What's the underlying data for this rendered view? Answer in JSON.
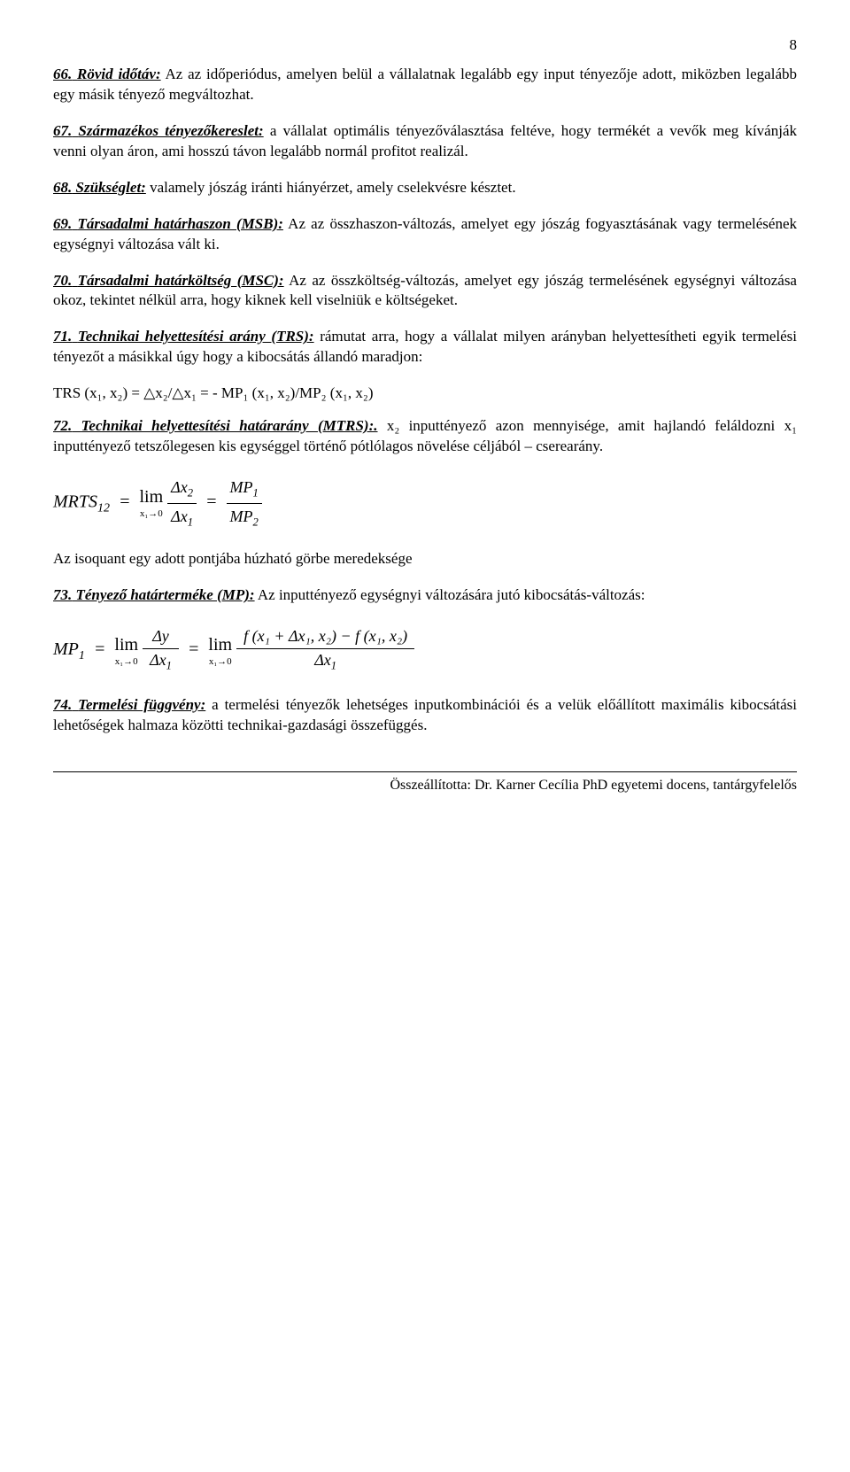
{
  "page_number": "8",
  "entries": [
    {
      "num": "66.",
      "term": "Rövid időtáv:",
      "body": " Az az időperiódus, amelyen belül a vállalatnak legalább egy input tényezője adott, miközben legalább egy másik tényező megváltozhat."
    },
    {
      "num": "67.",
      "term": "Származékos tényezőkereslet:",
      "body": " a vállalat optimális tényezőválasztása feltéve, hogy termékét a vevők meg kívánják venni olyan áron, ami hosszú távon legalább normál profitot realizál."
    },
    {
      "num": "68.",
      "term": "Szükséglet:",
      "body": "  valamely jószág iránti hiányérzet, amely cselekvésre késztet."
    },
    {
      "num": "69.",
      "term": "Társadalmi határhaszon (MSB):",
      "body": " Az az összhaszon-változás, amelyet egy jószág fogyasztásának vagy termelésének egységnyi változása vált ki."
    },
    {
      "num": "70.",
      "term": "Társadalmi határköltség (MSC):",
      "body": " Az az összköltség-változás, amelyet egy jószág termelésének egységnyi változása okoz, tekintet nélkül arra, hogy kiknek kell viselniük e költségeket."
    },
    {
      "num": "71.",
      "term": "Technikai helyettesítési arány (TRS):",
      "body": " rámutat arra, hogy a vállalat milyen arányban helyettesítheti egyik termelési tényezőt a másikkal úgy hogy a kibocsátás állandó maradjon:"
    },
    {
      "num": "72.",
      "term": "Technikai helyettesítési határarány (MTRS):.",
      "body": " x₂ inputtényező azon mennyisége, amit hajlandó feláldozni x₁ inputtényező tetszőlegesen kis egységgel történő pótlólagos növelése céljából – cserearány."
    },
    {
      "num": "73.",
      "term": "Tényező határterméke (MP):",
      "body": " Az inputtényező egységnyi változására jutó kibocsátás-változás:"
    },
    {
      "num": "74.",
      "term": "Termelési függvény:",
      "body": " a termelési  tényezők lehetséges inputkombinációi és a velük előállított maximális kibocsátási lehetőségek halmaza közötti technikai-gazdasági összefüggés."
    }
  ],
  "trs_formula": "TRS (x₁, x₂) = △x₂/△x₁ = - MP₁ (x₁, x₂)/MP₂ (x₁, x₂)",
  "isoquant_text": "Az isoquant egy adott pontjába húzható görbe meredeksége",
  "mrts": {
    "lhs": "MRTS",
    "lhs_sub": "12",
    "lim_sub": "x₁→0",
    "frac1_num": "Δx",
    "frac1_num_sub": "2",
    "frac1_den": "Δx",
    "frac1_den_sub": "1",
    "frac2_num": "MP",
    "frac2_num_sub": "1",
    "frac2_den": "MP",
    "frac2_den_sub": "2"
  },
  "mp": {
    "lhs": "MP",
    "lhs_sub": "1",
    "lim_sub": "x₁→0",
    "frac1_num": "Δy",
    "frac1_den": "Δx",
    "frac1_den_sub": "1",
    "frac2_num": "f (x₁ + Δx₁, x₂) − f (x₁, x₂)",
    "frac2_den": "Δx",
    "frac2_den_sub": "1"
  },
  "footer": "Összeállította: Dr. Karner Cecília PhD egyetemi docens, tantárgyfelelős"
}
